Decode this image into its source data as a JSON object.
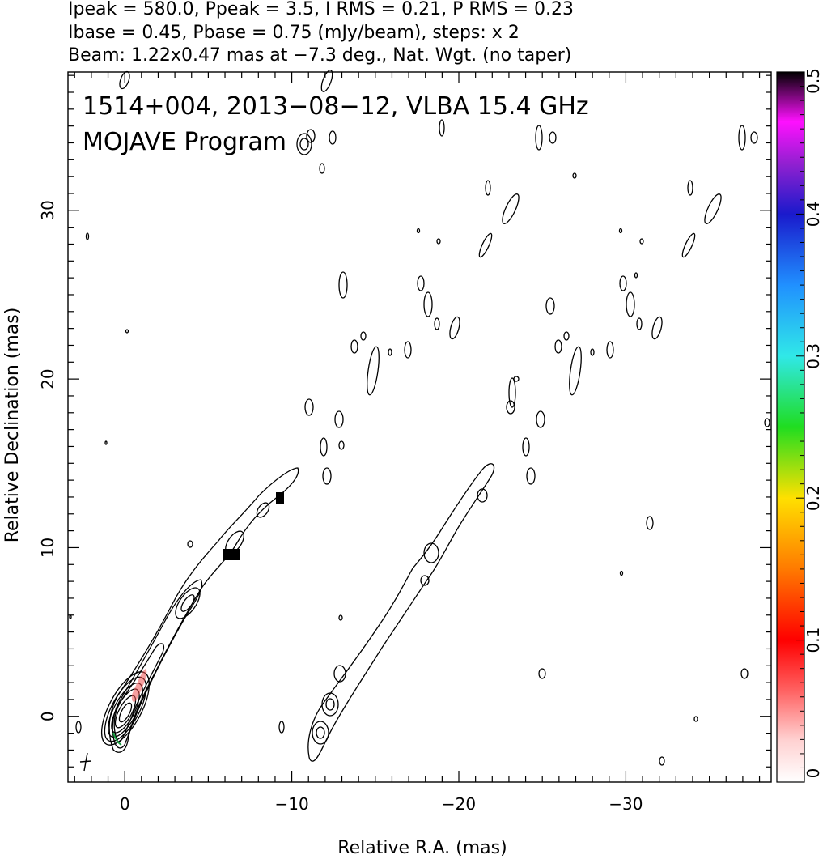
{
  "header": {
    "line1": "Ipeak = 580.0, Ppeak = 3.5, I RMS = 0.21, P RMS = 0.23",
    "line2": "Ibase = 0.45, Pbase = 0.75 (mJy/beam), steps: x 2",
    "line3": "Beam: 1.22x0.47 mas at −7.3 deg., Nat. Wgt. (no taper)"
  },
  "chart_data": {
    "type": "contour",
    "title_line1": "1514+004, 2013−08−12, VLBA 15.4 GHz",
    "title_line2": "MOJAVE Program",
    "xlabel": "Relative R.A. (mas)",
    "ylabel": "Relative Declination (mas)",
    "xlim": [
      3.4,
      -38.7
    ],
    "ylim": [
      -3.9,
      38.2
    ],
    "x_ticks": [
      0,
      -10,
      -20,
      -30
    ],
    "x_tick_labels": [
      "0",
      "−10",
      "−20",
      "−30"
    ],
    "y_ticks": [
      0,
      10,
      20,
      30
    ],
    "y_tick_labels": [
      "0",
      "10",
      "20",
      "30"
    ],
    "colorbar": {
      "min": 0,
      "max": 0.5,
      "ticks": [
        0,
        0.1,
        0.2,
        0.3,
        0.4,
        0.5
      ],
      "tick_labels": [
        "0",
        "0.1",
        "0.2",
        "0.3",
        "0.4",
        "0.5"
      ]
    },
    "contour_levels_mJy": [
      0.45,
      0.9,
      1.8,
      3.6,
      7.2,
      14.4,
      28.8,
      57.6,
      115.2,
      230.4,
      460.8
    ],
    "jet_components": [
      {
        "x": 0,
        "y": 0,
        "kind": "core"
      },
      {
        "x": -4.0,
        "y": 7.0,
        "kind": "jet"
      },
      {
        "x": -6.2,
        "y": 9.6,
        "kind": "jet"
      },
      {
        "x": -9.2,
        "y": 12.8,
        "kind": "jet"
      }
    ],
    "grid": false,
    "colors": {
      "contour": "#000000",
      "polarization_low": "#ffe6e6",
      "polarization_high": "#000000"
    }
  }
}
